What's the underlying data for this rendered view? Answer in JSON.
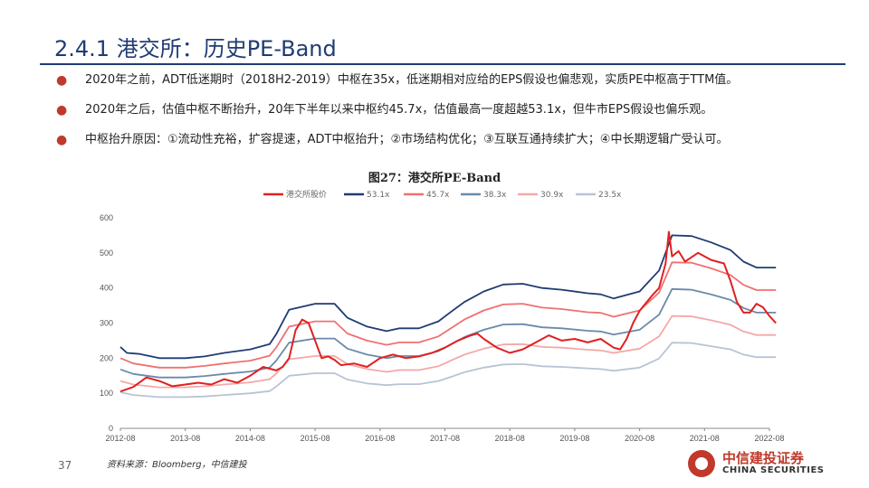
{
  "header": {
    "title": "2.4.1 港交所：历史PE-Band"
  },
  "bullets": [
    "2020年之前，ADT低迷期时（2018H2-2019）中枢在35x，低迷期相对应给的EPS假设也偏悲观，实质PE中枢高于TTM值。",
    "2020年之后，估值中枢不断抬升，20年下半年以来中枢约45.7x，估值最高一度超越53.1x，但牛市EPS假设也偏乐观。",
    "中枢抬升原因：①流动性充裕，扩容提速，ADT中枢抬升；②市场结构优化；③互联互通持续扩大；④中长期逻辑广受认可。"
  ],
  "footer": {
    "page_number": "37",
    "source": "资料来源：Bloomberg，中信建投",
    "logo_cn": "中信建投证券",
    "logo_en": "CHINA SECURITIES"
  },
  "chart_data": {
    "type": "line",
    "title": "图27：港交所PE-Band",
    "x_ticks": [
      "2012-08",
      "2013-08",
      "2014-08",
      "2015-08",
      "2016-08",
      "2017-08",
      "2018-08",
      "2019-08",
      "2020-08",
      "2021-08",
      "2022-08"
    ],
    "ylim": [
      0,
      600
    ],
    "y_ticks": [
      0,
      100,
      200,
      300,
      400,
      500,
      600
    ],
    "grid": false,
    "legend_position": "top",
    "series": [
      {
        "name": "港交所股价",
        "color": "#e02020",
        "points": [
          [
            2012.6,
            105
          ],
          [
            2012.8,
            118
          ],
          [
            2013.0,
            145
          ],
          [
            2013.2,
            135
          ],
          [
            2013.4,
            120
          ],
          [
            2013.6,
            125
          ],
          [
            2013.8,
            130
          ],
          [
            2014.0,
            125
          ],
          [
            2014.2,
            140
          ],
          [
            2014.4,
            130
          ],
          [
            2014.6,
            150
          ],
          [
            2014.8,
            175
          ],
          [
            2015.0,
            165
          ],
          [
            2015.1,
            175
          ],
          [
            2015.2,
            200
          ],
          [
            2015.3,
            280
          ],
          [
            2015.4,
            310
          ],
          [
            2015.5,
            300
          ],
          [
            2015.6,
            250
          ],
          [
            2015.7,
            200
          ],
          [
            2015.8,
            205
          ],
          [
            2015.9,
            195
          ],
          [
            2016.0,
            180
          ],
          [
            2016.2,
            185
          ],
          [
            2016.4,
            175
          ],
          [
            2016.6,
            200
          ],
          [
            2016.8,
            210
          ],
          [
            2017.0,
            200
          ],
          [
            2017.2,
            205
          ],
          [
            2017.4,
            215
          ],
          [
            2017.6,
            230
          ],
          [
            2017.8,
            250
          ],
          [
            2018.0,
            265
          ],
          [
            2018.1,
            270
          ],
          [
            2018.2,
            255
          ],
          [
            2018.4,
            230
          ],
          [
            2018.6,
            215
          ],
          [
            2018.8,
            225
          ],
          [
            2019.0,
            245
          ],
          [
            2019.2,
            265
          ],
          [
            2019.4,
            250
          ],
          [
            2019.6,
            255
          ],
          [
            2019.8,
            245
          ],
          [
            2020.0,
            255
          ],
          [
            2020.2,
            230
          ],
          [
            2020.3,
            225
          ],
          [
            2020.4,
            255
          ],
          [
            2020.5,
            300
          ],
          [
            2020.6,
            335
          ],
          [
            2020.8,
            380
          ],
          [
            2020.9,
            400
          ],
          [
            2021.0,
            470
          ],
          [
            2021.05,
            560
          ],
          [
            2021.1,
            490
          ],
          [
            2021.2,
            505
          ],
          [
            2021.3,
            475
          ],
          [
            2021.5,
            500
          ],
          [
            2021.7,
            480
          ],
          [
            2021.9,
            470
          ],
          [
            2022.0,
            420
          ],
          [
            2022.1,
            360
          ],
          [
            2022.2,
            330
          ],
          [
            2022.3,
            330
          ],
          [
            2022.4,
            355
          ],
          [
            2022.5,
            345
          ],
          [
            2022.6,
            320
          ],
          [
            2022.7,
            300
          ]
        ]
      },
      {
        "name": "53.1x",
        "color": "#1f3c73",
        "points": [
          [
            2012.6,
            232
          ],
          [
            2012.7,
            215
          ],
          [
            2012.9,
            212
          ],
          [
            2013.2,
            200
          ],
          [
            2013.6,
            200
          ],
          [
            2013.9,
            205
          ],
          [
            2014.2,
            215
          ],
          [
            2014.6,
            225
          ],
          [
            2014.9,
            240
          ],
          [
            2015.0,
            268
          ],
          [
            2015.2,
            338
          ],
          [
            2015.6,
            355
          ],
          [
            2015.9,
            355
          ],
          [
            2016.1,
            315
          ],
          [
            2016.4,
            290
          ],
          [
            2016.7,
            277
          ],
          [
            2016.9,
            285
          ],
          [
            2017.2,
            285
          ],
          [
            2017.5,
            305
          ],
          [
            2017.7,
            333
          ],
          [
            2017.9,
            360
          ],
          [
            2018.2,
            390
          ],
          [
            2018.5,
            410
          ],
          [
            2018.8,
            412
          ],
          [
            2019.1,
            400
          ],
          [
            2019.4,
            395
          ],
          [
            2019.8,
            385
          ],
          [
            2020.0,
            382
          ],
          [
            2020.2,
            370
          ],
          [
            2020.6,
            390
          ],
          [
            2020.9,
            450
          ],
          [
            2021.1,
            550
          ],
          [
            2021.4,
            548
          ],
          [
            2021.7,
            530
          ],
          [
            2022.0,
            508
          ],
          [
            2022.2,
            475
          ],
          [
            2022.4,
            458
          ],
          [
            2022.7,
            458
          ]
        ]
      },
      {
        "name": "45.7x",
        "color": "#f07070",
        "points": [
          [
            2012.6,
            200
          ],
          [
            2012.8,
            185
          ],
          [
            2013.2,
            173
          ],
          [
            2013.6,
            173
          ],
          [
            2013.9,
            178
          ],
          [
            2014.2,
            185
          ],
          [
            2014.6,
            193
          ],
          [
            2014.9,
            207
          ],
          [
            2015.0,
            230
          ],
          [
            2015.2,
            290
          ],
          [
            2015.6,
            305
          ],
          [
            2015.9,
            305
          ],
          [
            2016.1,
            270
          ],
          [
            2016.4,
            250
          ],
          [
            2016.7,
            238
          ],
          [
            2016.9,
            245
          ],
          [
            2017.2,
            245
          ],
          [
            2017.5,
            262
          ],
          [
            2017.7,
            286
          ],
          [
            2017.9,
            310
          ],
          [
            2018.2,
            336
          ],
          [
            2018.5,
            353
          ],
          [
            2018.8,
            355
          ],
          [
            2019.1,
            344
          ],
          [
            2019.4,
            340
          ],
          [
            2019.8,
            331
          ],
          [
            2020.0,
            329
          ],
          [
            2020.2,
            318
          ],
          [
            2020.6,
            336
          ],
          [
            2020.9,
            387
          ],
          [
            2021.1,
            473
          ],
          [
            2021.4,
            472
          ],
          [
            2021.7,
            456
          ],
          [
            2022.0,
            437
          ],
          [
            2022.2,
            409
          ],
          [
            2022.4,
            394
          ],
          [
            2022.7,
            394
          ]
        ]
      },
      {
        "name": "38.3x",
        "color": "#6a8aaa",
        "points": [
          [
            2012.6,
            168
          ],
          [
            2012.8,
            155
          ],
          [
            2013.2,
            145
          ],
          [
            2013.6,
            145
          ],
          [
            2013.9,
            149
          ],
          [
            2014.2,
            155
          ],
          [
            2014.6,
            162
          ],
          [
            2014.9,
            173
          ],
          [
            2015.0,
            193
          ],
          [
            2015.2,
            244
          ],
          [
            2015.6,
            256
          ],
          [
            2015.9,
            256
          ],
          [
            2016.1,
            227
          ],
          [
            2016.4,
            210
          ],
          [
            2016.7,
            200
          ],
          [
            2016.9,
            206
          ],
          [
            2017.2,
            206
          ],
          [
            2017.5,
            220
          ],
          [
            2017.7,
            240
          ],
          [
            2017.9,
            260
          ],
          [
            2018.2,
            281
          ],
          [
            2018.5,
            296
          ],
          [
            2018.8,
            297
          ],
          [
            2019.1,
            288
          ],
          [
            2019.4,
            285
          ],
          [
            2019.8,
            278
          ],
          [
            2020.0,
            276
          ],
          [
            2020.2,
            267
          ],
          [
            2020.6,
            281
          ],
          [
            2020.9,
            324
          ],
          [
            2021.1,
            397
          ],
          [
            2021.4,
            395
          ],
          [
            2021.7,
            382
          ],
          [
            2022.0,
            366
          ],
          [
            2022.2,
            343
          ],
          [
            2022.4,
            330
          ],
          [
            2022.7,
            330
          ]
        ]
      },
      {
        "name": "30.9x",
        "color": "#f4a8a8",
        "points": [
          [
            2012.6,
            135
          ],
          [
            2012.8,
            125
          ],
          [
            2013.2,
            117
          ],
          [
            2013.6,
            117
          ],
          [
            2013.9,
            120
          ],
          [
            2014.2,
            125
          ],
          [
            2014.6,
            131
          ],
          [
            2014.9,
            140
          ],
          [
            2015.0,
            156
          ],
          [
            2015.2,
            197
          ],
          [
            2015.6,
            206
          ],
          [
            2015.9,
            206
          ],
          [
            2016.1,
            183
          ],
          [
            2016.4,
            169
          ],
          [
            2016.7,
            161
          ],
          [
            2016.9,
            166
          ],
          [
            2017.2,
            166
          ],
          [
            2017.5,
            177
          ],
          [
            2017.7,
            194
          ],
          [
            2017.9,
            210
          ],
          [
            2018.2,
            227
          ],
          [
            2018.5,
            239
          ],
          [
            2018.8,
            240
          ],
          [
            2019.1,
            232
          ],
          [
            2019.4,
            230
          ],
          [
            2019.8,
            224
          ],
          [
            2020.0,
            222
          ],
          [
            2020.2,
            215
          ],
          [
            2020.6,
            227
          ],
          [
            2020.9,
            262
          ],
          [
            2021.1,
            320
          ],
          [
            2021.4,
            319
          ],
          [
            2021.7,
            308
          ],
          [
            2022.0,
            295
          ],
          [
            2022.2,
            276
          ],
          [
            2022.4,
            266
          ],
          [
            2022.7,
            266
          ]
        ]
      },
      {
        "name": "23.5x",
        "color": "#b8c4d4",
        "points": [
          [
            2012.6,
            103
          ],
          [
            2012.8,
            95
          ],
          [
            2013.2,
            89
          ],
          [
            2013.6,
            89
          ],
          [
            2013.9,
            91
          ],
          [
            2014.2,
            95
          ],
          [
            2014.6,
            100
          ],
          [
            2014.9,
            106
          ],
          [
            2015.0,
            119
          ],
          [
            2015.2,
            150
          ],
          [
            2015.6,
            157
          ],
          [
            2015.9,
            157
          ],
          [
            2016.1,
            139
          ],
          [
            2016.4,
            128
          ],
          [
            2016.7,
            123
          ],
          [
            2016.9,
            126
          ],
          [
            2017.2,
            126
          ],
          [
            2017.5,
            135
          ],
          [
            2017.7,
            147
          ],
          [
            2017.9,
            160
          ],
          [
            2018.2,
            173
          ],
          [
            2018.5,
            182
          ],
          [
            2018.8,
            183
          ],
          [
            2019.1,
            177
          ],
          [
            2019.4,
            175
          ],
          [
            2019.8,
            171
          ],
          [
            2020.0,
            169
          ],
          [
            2020.2,
            164
          ],
          [
            2020.6,
            173
          ],
          [
            2020.9,
            199
          ],
          [
            2021.1,
            244
          ],
          [
            2021.4,
            243
          ],
          [
            2021.7,
            234
          ],
          [
            2022.0,
            225
          ],
          [
            2022.2,
            210
          ],
          [
            2022.4,
            203
          ],
          [
            2022.7,
            203
          ]
        ]
      }
    ]
  }
}
